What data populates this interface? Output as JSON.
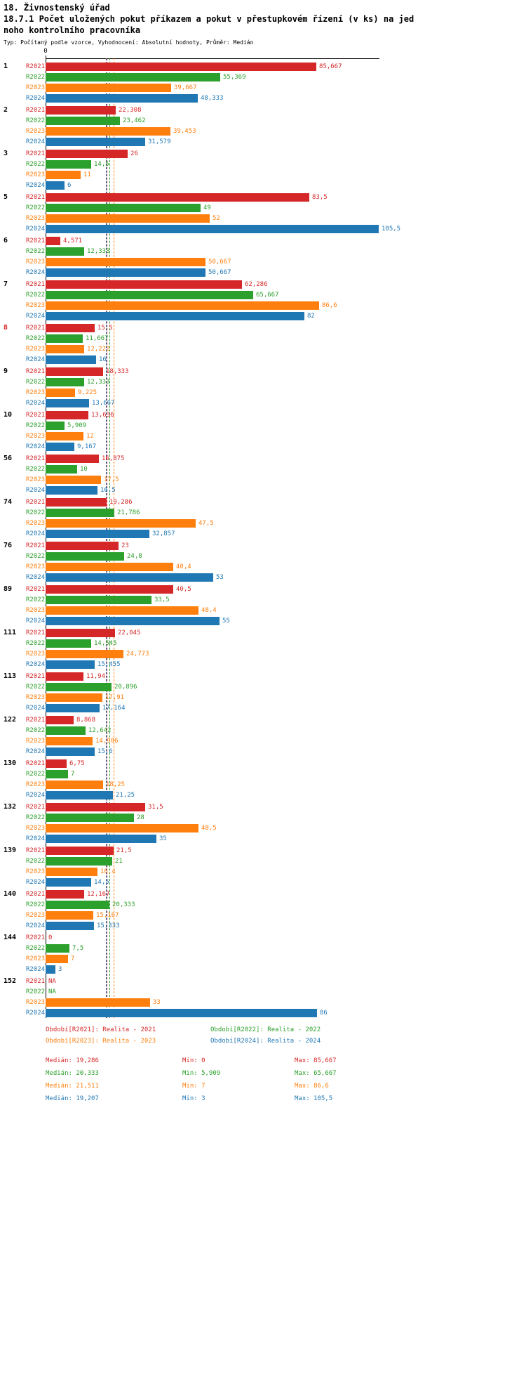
{
  "header": {
    "title": "18. Živnostenský úřad",
    "subtitle_line1": "18.7.1 Počet uložených pokut příkazem a pokut v přestupkovém řízení (v ks) na jed",
    "subtitle_line2": "noho kontrolního pracovníka",
    "meta": "Typ: Počítaný podle vzorce, Vyhodnocení: Absolutní hodnoty, Průměr: Medián"
  },
  "chart_data": {
    "type": "bar",
    "orientation": "horizontal",
    "value_axis": {
      "zero_label": "0",
      "min": 0,
      "max": 105.5
    },
    "series": [
      "R2021",
      "R2022",
      "R2023",
      "R2024"
    ],
    "series_colors": {
      "R2021": "#d62728",
      "R2022": "#2ca02c",
      "R2023": "#ff7f0e",
      "R2024": "#1f77b4"
    },
    "highlight_color": "#d62728",
    "medians": {
      "R2021": 19.286,
      "R2022": 20.333,
      "R2023": 21.511,
      "R2024": 19.207
    },
    "groups": [
      {
        "label": "1",
        "highlight": false,
        "values": [
          "85,667",
          "55,369",
          "39,667",
          "48,333"
        ]
      },
      {
        "label": "2",
        "highlight": false,
        "values": [
          "22,308",
          "23,462",
          "39,453",
          "31,579"
        ]
      },
      {
        "label": "3",
        "highlight": false,
        "values": [
          "26",
          "14,5",
          "11",
          "6"
        ]
      },
      {
        "label": "5",
        "highlight": false,
        "values": [
          "83,5",
          "49",
          "52",
          "105,5"
        ]
      },
      {
        "label": "6",
        "highlight": false,
        "values": [
          "4,571",
          "12,333",
          "50,667",
          "50,667"
        ]
      },
      {
        "label": "7",
        "highlight": false,
        "values": [
          "62,286",
          "65,667",
          "86,6",
          "82"
        ]
      },
      {
        "label": "8",
        "highlight": true,
        "values": [
          "15,5",
          "11,667",
          "12,222",
          "16"
        ]
      },
      {
        "label": "9",
        "highlight": false,
        "values": [
          "18,333",
          "12,333",
          "9,225",
          "13,667"
        ]
      },
      {
        "label": "10",
        "highlight": false,
        "values": [
          "13,636",
          "5,909",
          "12",
          "9,167"
        ]
      },
      {
        "label": "56",
        "highlight": false,
        "values": [
          "16,875",
          "10",
          "17,5",
          "16,5"
        ]
      },
      {
        "label": "74",
        "highlight": false,
        "values": [
          "19,286",
          "21,786",
          "47,5",
          "32,857"
        ]
      },
      {
        "label": "76",
        "highlight": false,
        "values": [
          "23",
          "24,8",
          "40,4",
          "53"
        ]
      },
      {
        "label": "89",
        "highlight": false,
        "values": [
          "40,5",
          "33,5",
          "48,4",
          "55"
        ]
      },
      {
        "label": "111",
        "highlight": false,
        "values": [
          "22,045",
          "14,545",
          "24,773",
          "15,455"
        ]
      },
      {
        "label": "113",
        "highlight": false,
        "values": [
          "11,94",
          "20,896",
          "17,91",
          "17,164"
        ]
      },
      {
        "label": "122",
        "highlight": false,
        "values": [
          "8,868",
          "12,642",
          "14,906",
          "15,6"
        ]
      },
      {
        "label": "130",
        "highlight": false,
        "values": [
          "6,75",
          "7",
          "18,25",
          "21,25"
        ]
      },
      {
        "label": "132",
        "highlight": false,
        "values": [
          "31,5",
          "28",
          "48,5",
          "35"
        ]
      },
      {
        "label": "139",
        "highlight": false,
        "values": [
          "21,5",
          "21",
          "16,4",
          "14,5"
        ]
      },
      {
        "label": "140",
        "highlight": false,
        "values": [
          "12,167",
          "20,333",
          "15,167",
          "15,333"
        ]
      },
      {
        "label": "144",
        "highlight": false,
        "values": [
          "0",
          "7,5",
          "7",
          "3"
        ]
      },
      {
        "label": "152",
        "highlight": false,
        "values": [
          "NA",
          "NA",
          "33",
          "86"
        ]
      }
    ]
  },
  "legend": [
    {
      "label": "Období[R2021]: Realita - 2021",
      "series": "R2021"
    },
    {
      "label": "Období[R2022]: Realita - 2022",
      "series": "R2022"
    },
    {
      "label": "Období[R2023]: Realita - 2023",
      "series": "R2023"
    },
    {
      "label": "Období[R2024]: Realita - 2024",
      "series": "R2024"
    }
  ],
  "stats": [
    {
      "series": "R2021",
      "median": "Medián: 19,286",
      "min": "Min: 0",
      "max": "Max: 85,667"
    },
    {
      "series": "R2022",
      "median": "Medián: 20,333",
      "min": "Min: 5,909",
      "max": "Max: 65,667"
    },
    {
      "series": "R2023",
      "median": "Medián: 21,511",
      "min": "Min: 7",
      "max": "Max: 86,6"
    },
    {
      "series": "R2024",
      "median": "Medián: 19,207",
      "min": "Min: 3",
      "max": "Max: 105,5"
    }
  ]
}
